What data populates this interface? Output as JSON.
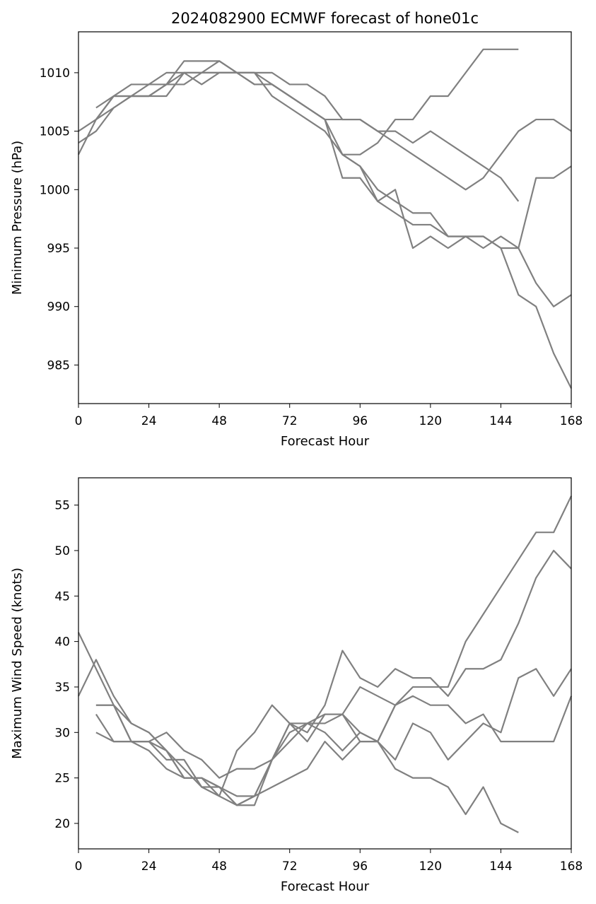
{
  "chart_data": [
    {
      "type": "line",
      "title": "2024082900 ECMWF forecast of hone01c",
      "xlabel": "Forecast Hour",
      "ylabel": "Minimum Pressure (hPa)",
      "xlim": [
        0,
        168
      ],
      "ylim": [
        981.7,
        1013.5
      ],
      "xticks": [
        0,
        24,
        48,
        72,
        96,
        120,
        144,
        168
      ],
      "yticks": [
        985,
        990,
        995,
        1000,
        1005,
        1010
      ],
      "grid": false,
      "line_color": "#808080",
      "series": [
        {
          "x": [
            6,
            12,
            18,
            24,
            30,
            36,
            42,
            48,
            54,
            60,
            66,
            72,
            78,
            84,
            90,
            96,
            102,
            108,
            114,
            120,
            126,
            132,
            138,
            144,
            150
          ],
          "y": [
            1007,
            1008,
            1009,
            1009,
            1009,
            1011,
            1011,
            1011,
            1010,
            1010,
            1010,
            1009,
            1009,
            1008,
            1006,
            1006,
            1005,
            1005,
            1004,
            1005,
            1004,
            1003,
            1002,
            1001,
            999
          ]
        },
        {
          "x": [
            0,
            6,
            12,
            18,
            24,
            30,
            36,
            42,
            48,
            54,
            60,
            66,
            72,
            78,
            84,
            90,
            96,
            102,
            108,
            114,
            120,
            126,
            132,
            138,
            144,
            150,
            156,
            162,
            168
          ],
          "y": [
            1004,
            1005,
            1007,
            1008,
            1008,
            1008,
            1010,
            1010,
            1010,
            1010,
            1010,
            1009,
            1008,
            1007,
            1006,
            1006,
            1006,
            1005,
            1004,
            1003,
            1002,
            1001,
            1000,
            1001,
            1003,
            1005,
            1006,
            1006,
            1005
          ]
        },
        {
          "x": [
            0,
            6,
            12,
            18,
            24,
            30,
            36,
            42,
            48,
            54,
            60,
            66,
            72,
            78,
            84,
            90,
            96,
            102,
            108,
            114,
            120,
            126,
            132,
            138,
            144,
            150,
            156,
            162,
            168
          ],
          "y": [
            1003,
            1006,
            1008,
            1008,
            1009,
            1010,
            1010,
            1009,
            1010,
            1010,
            1009,
            1009,
            1008,
            1007,
            1006,
            1003,
            1003,
            1004,
            1006,
            1006,
            1008,
            1008,
            1010,
            1012,
            1012,
            1012,
            null,
            null,
            null
          ]
        },
        {
          "x": [
            0,
            6,
            12,
            18,
            24,
            30,
            36,
            42,
            48,
            54,
            60,
            66,
            72,
            78,
            84,
            90,
            96,
            102,
            108,
            114,
            120,
            126,
            132,
            138,
            144,
            150,
            156,
            162,
            168
          ],
          "y": [
            1005,
            1006,
            1007,
            1008,
            1008,
            1009,
            1009,
            1010,
            1011,
            1010,
            1010,
            1008,
            1007,
            1006,
            1005,
            1003,
            1002,
            999,
            1000,
            995,
            996,
            995,
            996,
            995,
            996,
            995,
            992,
            990,
            991
          ]
        },
        {
          "x": [
            6,
            12,
            18,
            24,
            30,
            36,
            42,
            48,
            54,
            60,
            66,
            72,
            78,
            84,
            90,
            96,
            102,
            108,
            114,
            120,
            126,
            132,
            138,
            144,
            150,
            156,
            162,
            168
          ],
          "y": [
            1006,
            1008,
            1008,
            1008,
            1009,
            1010,
            1010,
            1010,
            1010,
            1009,
            1009,
            1008,
            1007,
            1006,
            1001,
            1001,
            999,
            998,
            997,
            997,
            996,
            996,
            996,
            995,
            991,
            990,
            986,
            983
          ]
        },
        {
          "x": [
            90,
            96,
            102,
            108,
            114,
            120,
            126,
            132,
            138,
            144,
            150,
            156,
            162,
            168
          ],
          "y": [
            1003,
            1002,
            1000,
            999,
            998,
            998,
            996,
            996,
            996,
            995,
            995,
            1001,
            1001,
            1002
          ]
        }
      ]
    },
    {
      "type": "line",
      "title": "",
      "xlabel": "Forecast Hour",
      "ylabel": "Maximum Wind Speed (knots)",
      "xlim": [
        0,
        168
      ],
      "ylim": [
        17.2,
        58
      ],
      "xticks": [
        0,
        24,
        48,
        72,
        96,
        120,
        144,
        168
      ],
      "yticks": [
        20,
        25,
        30,
        35,
        40,
        45,
        50,
        55
      ],
      "grid": false,
      "line_color": "#808080",
      "series": [
        {
          "x": [
            0,
            6,
            12,
            18,
            24,
            30,
            36,
            42,
            48,
            54,
            60,
            66,
            72,
            78,
            84,
            90,
            96,
            102,
            108,
            114,
            120,
            126,
            132,
            138,
            144,
            150,
            156,
            162,
            168
          ],
          "y": [
            41,
            37,
            33,
            29,
            29,
            28,
            26,
            24,
            24,
            22,
            23,
            27,
            31,
            29,
            32,
            32,
            30,
            29,
            27,
            31,
            30,
            27,
            29,
            31,
            30,
            36,
            37,
            34,
            37
          ]
        },
        {
          "x": [
            0,
            6,
            12,
            18,
            24,
            30,
            36,
            42,
            48,
            54,
            60,
            66,
            72,
            78,
            84,
            90,
            96,
            102,
            108,
            114,
            120,
            126,
            132,
            138,
            144,
            150,
            156,
            162,
            168
          ],
          "y": [
            34,
            38,
            34,
            31,
            30,
            28,
            25,
            25,
            23,
            28,
            30,
            33,
            31,
            30,
            33,
            39,
            36,
            35,
            37,
            36,
            36,
            34,
            37,
            37,
            38,
            42,
            47,
            50,
            48
          ]
        },
        {
          "x": [
            6,
            12,
            18,
            24,
            30,
            36,
            42,
            48,
            54,
            60,
            66,
            72,
            78,
            84,
            90,
            96,
            102,
            108,
            114,
            120,
            126,
            132,
            138,
            144,
            150
          ],
          "y": [
            33,
            33,
            29,
            29,
            30,
            28,
            27,
            25,
            26,
            26,
            27,
            30,
            31,
            31,
            32,
            29,
            29,
            26,
            25,
            25,
            24,
            21,
            24,
            20,
            19
          ]
        },
        {
          "x": [
            6,
            12,
            18,
            24,
            30,
            36,
            42,
            48,
            54,
            60,
            66,
            72,
            78,
            84,
            90,
            96,
            102,
            108,
            114,
            120,
            126,
            132,
            138,
            144,
            150,
            156,
            162,
            168
          ],
          "y": [
            32,
            29,
            29,
            28,
            26,
            25,
            25,
            24,
            22,
            22,
            27,
            31,
            31,
            30,
            28,
            30,
            29,
            33,
            34,
            33,
            33,
            31,
            32,
            29,
            29,
            29,
            29,
            34
          ]
        },
        {
          "x": [
            6,
            12,
            18,
            24,
            30,
            36,
            42,
            48,
            54,
            60,
            66,
            72,
            78,
            84,
            90,
            96,
            102,
            108,
            114,
            120,
            126,
            132,
            138,
            144,
            150,
            156,
            162,
            168
          ],
          "y": [
            30,
            29,
            29,
            29,
            27,
            27,
            24,
            23,
            22,
            23,
            24,
            25,
            26,
            29,
            27,
            29,
            29,
            33,
            35,
            35,
            35,
            40,
            43,
            46,
            49,
            52,
            52,
            56
          ]
        },
        {
          "x": [
            6,
            12,
            18,
            24,
            30,
            36,
            42,
            48,
            54,
            60,
            66,
            72,
            78,
            84,
            90,
            96,
            102,
            108,
            114
          ],
          "y": [
            33,
            33,
            31,
            30,
            28,
            25,
            25,
            24,
            23,
            23,
            27,
            29,
            31,
            32,
            32,
            35,
            34,
            33,
            34
          ]
        }
      ]
    }
  ]
}
